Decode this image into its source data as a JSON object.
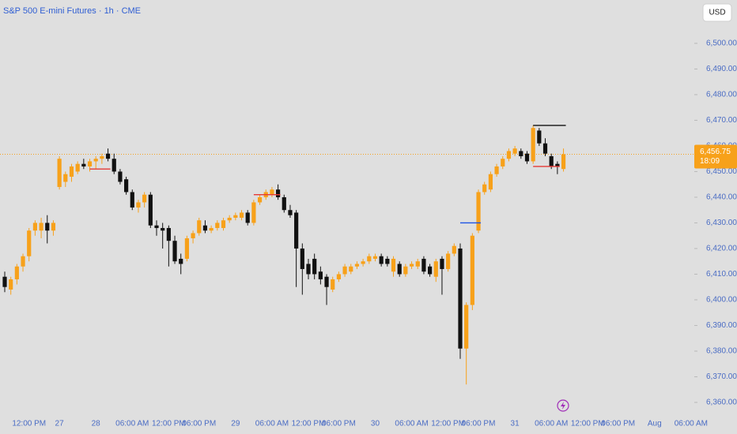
{
  "chart_data": {
    "type": "candlestick",
    "title": "S&P 500 E-mini Futures · 1h · CME",
    "currency": "USD",
    "up_color": "#f7a11a",
    "down_color": "#111111",
    "ylim": [
      6356.3,
      6516.9
    ],
    "yticks": [
      {
        "value": 6500,
        "label": "6,500.00"
      },
      {
        "value": 6490,
        "label": "6,490.00"
      },
      {
        "value": 6480,
        "label": "6,480.00"
      },
      {
        "value": 6470,
        "label": "6,470.00"
      },
      {
        "value": 6460,
        "label": "6,460.00"
      },
      {
        "value": 6450,
        "label": "6,450.00"
      },
      {
        "value": 6440,
        "label": "6,440.00"
      },
      {
        "value": 6430,
        "label": "6,430.00"
      },
      {
        "value": 6420,
        "label": "6,420.00"
      },
      {
        "value": 6410,
        "label": "6,410.00"
      },
      {
        "value": 6400,
        "label": "6,400.00"
      },
      {
        "value": 6390,
        "label": "6,390.00"
      },
      {
        "value": 6380,
        "label": "6,380.00"
      },
      {
        "value": 6370,
        "label": "6,370.00"
      },
      {
        "value": 6360,
        "label": "6,360.00"
      }
    ],
    "categories": [
      null,
      null,
      null,
      null,
      "12:00 PM",
      null,
      null,
      null,
      null,
      "27",
      null,
      null,
      null,
      null,
      null,
      "28",
      null,
      null,
      null,
      null,
      null,
      "06:00 AM",
      null,
      null,
      null,
      null,
      null,
      "12:00 PM",
      null,
      null,
      null,
      null,
      "06:00 PM",
      null,
      null,
      null,
      null,
      null,
      "29",
      null,
      null,
      null,
      null,
      null,
      "06:00 AM",
      null,
      null,
      null,
      null,
      null,
      "12:00 PM",
      null,
      null,
      null,
      null,
      "06:00 PM",
      null,
      null,
      null,
      null,
      null,
      "30",
      null,
      null,
      null,
      null,
      null,
      "06:00 AM",
      null,
      null,
      null,
      null,
      null,
      "12:00 PM",
      null,
      null,
      null,
      null,
      "06:00 PM",
      null,
      null,
      null,
      null,
      null,
      "31",
      null,
      null,
      null,
      null,
      null,
      "06:00 AM",
      null,
      null,
      null,
      null,
      null,
      "12:00 PM",
      null,
      null,
      null,
      null,
      "06:00 PM",
      null,
      null,
      null,
      null,
      null,
      "Aug",
      null,
      null,
      null,
      null,
      null,
      "06:00 AM",
      null
    ],
    "open": [
      6409,
      6404,
      6408,
      6413,
      6417,
      6427,
      6427,
      6430,
      6427,
      6444,
      6446,
      6448,
      6450,
      6453,
      6452,
      6454,
      6455,
      6457,
      6455,
      6450,
      6447,
      6442,
      6436,
      6438,
      6441,
      6429,
      6428,
      6428,
      6423,
      6416,
      6416,
      6424,
      6426,
      6429,
      6427,
      6428,
      6428,
      6431,
      6432,
      6432,
      6434,
      6430,
      6438,
      6440,
      6441,
      6443,
      6440,
      6435,
      6434,
      6420,
      6414,
      6416,
      6411,
      6409,
      6404,
      6408,
      6410,
      6411,
      6413,
      6414,
      6415,
      6416,
      6417,
      6416,
      6411,
      6414,
      6410,
      6413,
      6413,
      6416,
      6413,
      6409,
      6416,
      6412,
      6418,
      6420,
      6381,
      6398,
      6427,
      6442,
      6443,
      6449,
      6452,
      6455,
      6457,
      6458,
      6457,
      6454,
      6466,
      6461,
      6456,
      6453,
      6451,
      null,
      null,
      null,
      null,
      null,
      null,
      null,
      null,
      null,
      null,
      null,
      null,
      null,
      null,
      null,
      null,
      null,
      null,
      null,
      null,
      null,
      null
    ],
    "high": [
      6411,
      6409,
      6414,
      6418,
      6428,
      6431,
      6432,
      6433,
      6431,
      6456,
      6450,
      6453,
      6454,
      6455,
      6455,
      6456,
      6457,
      6459,
      6457,
      6451,
      6448,
      6443,
      6439,
      6442,
      6442,
      6431,
      6430,
      6429,
      6425,
      6418,
      6425,
      6427,
      6432,
      6431,
      6429,
      6431,
      6432,
      6433,
      6434,
      6435,
      6435,
      6439,
      6441,
      6443,
      6444,
      6445,
      6441,
      6437,
      6435,
      6422,
      6416,
      6418,
      6413,
      6410,
      6409,
      6411,
      6414,
      6414,
      6415,
      6416,
      6418,
      6418,
      6418,
      6417,
      6417,
      6415,
      6414,
      6415,
      6416,
      6417,
      6414,
      6416,
      6417,
      6419,
      6422,
      6422,
      6399,
      6426,
      6443,
      6446,
      6450,
      6453,
      6456,
      6459,
      6460,
      6459,
      6458,
      6468,
      6467,
      6463,
      6457,
      6454,
      6459,
      null,
      null,
      null,
      null,
      null,
      null,
      null,
      null,
      null,
      null,
      null,
      null,
      null,
      null,
      null,
      null,
      null,
      null,
      null,
      null,
      null,
      null
    ],
    "low": [
      6403,
      6402,
      6406,
      6411,
      6415,
      6425,
      6424,
      6422,
      6425,
      6443,
      6444,
      6446,
      6449,
      6451,
      6450,
      6451,
      6453,
      6454,
      6449,
      6445,
      6441,
      6435,
      6434,
      6436,
      6428,
      6425,
      6420,
      6413,
      6414,
      6410,
      6415,
      6422,
      6425,
      6426,
      6426,
      6427,
      6427,
      6430,
      6431,
      6431,
      6429,
      6429,
      6437,
      6439,
      6440,
      6439,
      6434,
      6432,
      6405,
      6402,
      6408,
      6408,
      6406,
      6398,
      6403,
      6407,
      6409,
      6410,
      6412,
      6413,
      6414,
      6415,
      6413,
      6413,
      6409,
      6409,
      6409,
      6412,
      6412,
      6410,
      6409,
      6407,
      6402,
      6411,
      6417,
      6377,
      6367,
      6396,
      6426,
      6441,
      6442,
      6448,
      6451,
      6454,
      6456,
      6455,
      6453,
      6453,
      6460,
      6456,
      6451,
      6449,
      6450,
      null,
      null,
      null,
      null,
      null,
      null,
      null,
      null,
      null,
      null,
      null,
      null,
      null,
      null,
      null,
      null,
      null,
      null,
      null,
      null,
      null,
      null
    ],
    "close": [
      6405,
      6408,
      6413,
      6417,
      6427,
      6430,
      6430,
      6427,
      6430,
      6455,
      6449,
      6452,
      6453,
      6452,
      6454,
      6455,
      6456,
      6455,
      6450,
      6446,
      6442,
      6436,
      6438,
      6441,
      6429,
      6428,
      6427,
      6423,
      6415,
      6414,
      6424,
      6426,
      6431,
      6427,
      6428,
      6430,
      6431,
      6432,
      6433,
      6434,
      6430,
      6438,
      6440,
      6442,
      6443,
      6440,
      6435,
      6433,
      6420,
      6412,
      6410,
      6410,
      6408,
      6405,
      6408,
      6410,
      6413,
      6413,
      6414,
      6415,
      6417,
      6417,
      6414,
      6414,
      6416,
      6410,
      6413,
      6414,
      6415,
      6411,
      6410,
      6415,
      6412,
      6418,
      6421,
      6381,
      6398,
      6425,
      6442,
      6445,
      6449,
      6452,
      6455,
      6458,
      6459,
      6456,
      6454,
      6467,
      6461,
      6457,
      6452,
      6452,
      6456.75,
      null,
      null,
      null,
      null,
      null,
      null,
      null,
      null,
      null,
      null,
      null,
      null,
      null,
      null,
      null,
      null,
      null,
      null,
      null,
      null,
      null,
      null
    ],
    "levels": [
      {
        "value": 6451,
        "from": 14,
        "to": 17,
        "color": "#e53935"
      },
      {
        "value": 6441,
        "from": 41,
        "to": 45,
        "color": "#e53935"
      },
      {
        "value": 6430,
        "from": 75,
        "to": 78,
        "color": "#1e53e5"
      },
      {
        "value": 6468,
        "from": 87,
        "to": 92,
        "color": "#111111"
      },
      {
        "value": 6452,
        "from": 87,
        "to": 91,
        "color": "#e53935"
      }
    ],
    "last_price": {
      "value": 6456.75,
      "label": "6,456.75",
      "countdown": "18:09",
      "color": "#f7a11a"
    }
  }
}
